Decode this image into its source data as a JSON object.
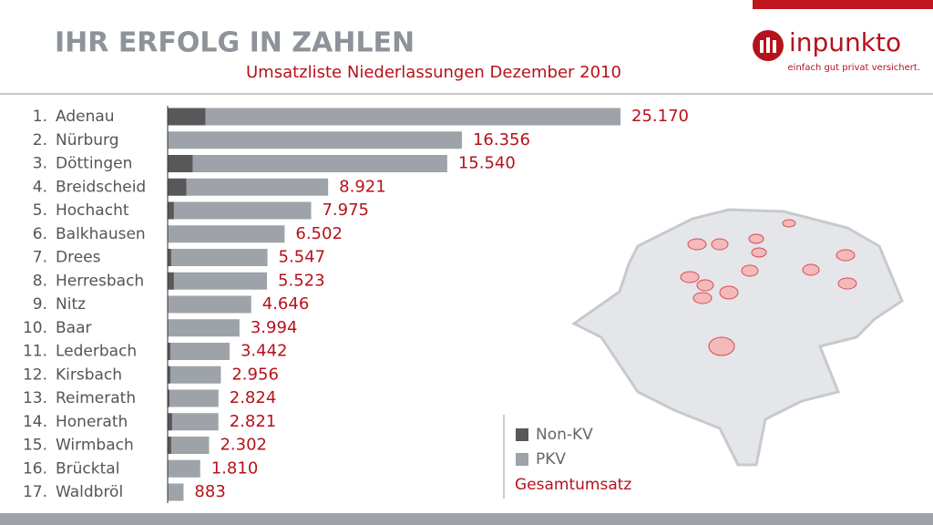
{
  "branding": {
    "logo": "inpunkto",
    "tagline": "einfach gut privat versichert."
  },
  "chart_data": {
    "type": "stacked-bar-horizontal",
    "title": "IHR ERFOLG IN ZAHLEN",
    "subtitle": "Umsatzliste Niederlassungen Dezember 2010",
    "ranks": [
      "1.",
      "2.",
      "3.",
      "4.",
      "5.",
      "6.",
      "7.",
      "8.",
      "9.",
      "10.",
      "11.",
      "12.",
      "13.",
      "14.",
      "15.",
      "16.",
      "17."
    ],
    "categories": [
      "Adenau",
      "Nürburg",
      "Döttingen",
      "Breidscheid",
      "Hochacht",
      "Balkhausen",
      "Drees",
      "Herresbach",
      "Nitz",
      "Baar",
      "Lederbach",
      "Kirsbach",
      "Reimerath",
      "Honerath",
      "Wirmbach",
      "Brücktal",
      "Waldbröl"
    ],
    "series": [
      {
        "name": "Non-KV",
        "color": "#58585a",
        "values": [
          2100,
          0,
          1400,
          1050,
          350,
          0,
          200,
          350,
          0,
          0,
          150,
          150,
          100,
          250,
          200,
          0,
          0
        ]
      },
      {
        "name": "PKV",
        "color": "#9ea3aa",
        "values": [
          23070,
          16356,
          14140,
          7871,
          7625,
          6502,
          5347,
          5173,
          4646,
          3994,
          3292,
          2806,
          2724,
          2571,
          2102,
          1810,
          883
        ]
      }
    ],
    "totals": {
      "name": "Gesamtumsatz",
      "color": "#b5121b",
      "values": [
        25170,
        16356,
        15540,
        8921,
        7975,
        6502,
        5547,
        5523,
        4646,
        3994,
        3442,
        2956,
        2824,
        2821,
        2302,
        1810,
        883
      ],
      "value_labels": [
        "25.170",
        "16.356",
        "15.540",
        "8.921",
        "7.975",
        "6.502",
        "5.547",
        "5.523",
        "4.646",
        "3.994",
        "3.442",
        "2.956",
        "2.824",
        "2.821",
        "2.302",
        "1.810",
        "883"
      ]
    },
    "xlim": [
      0,
      25170
    ]
  }
}
